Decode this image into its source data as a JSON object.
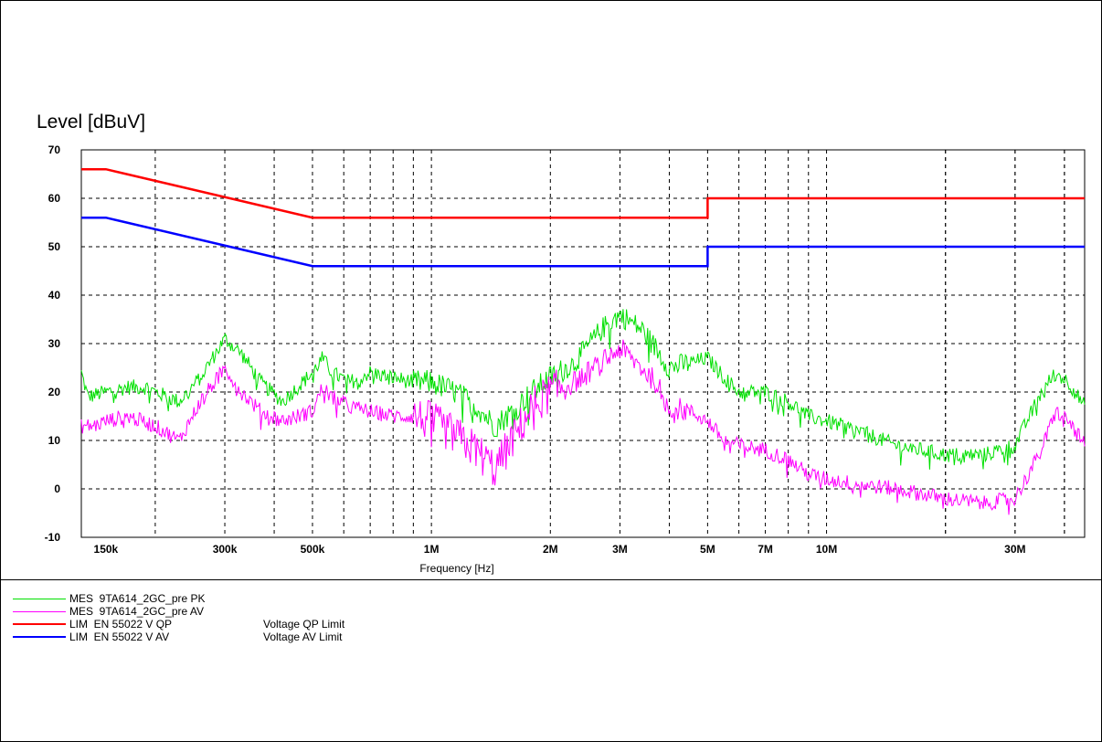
{
  "chart_data": {
    "type": "line",
    "ylabel": "Level [dBuV]",
    "xlabel": "Frequency [Hz]",
    "x_scale": "log",
    "xlim": [
      130000,
      45000000
    ],
    "ylim": [
      -10,
      70
    ],
    "yticks": [
      70,
      60,
      50,
      40,
      30,
      20,
      10,
      0,
      -10
    ],
    "xtick_labels": [
      {
        "value": 150000,
        "label": "150k"
      },
      {
        "value": 300000,
        "label": "300k"
      },
      {
        "value": 500000,
        "label": "500k"
      },
      {
        "value": 1000000,
        "label": "1M"
      },
      {
        "value": 2000000,
        "label": "2M"
      },
      {
        "value": 3000000,
        "label": "3M"
      },
      {
        "value": 5000000,
        "label": "5M"
      },
      {
        "value": 7000000,
        "label": "7M"
      },
      {
        "value": 10000000,
        "label": "10M"
      },
      {
        "value": 30000000,
        "label": "30M"
      }
    ],
    "grid": true,
    "series": [
      {
        "name": "MES  9TA614_2GC_pre PK",
        "color": "#00e000",
        "noisy": true,
        "points": [
          [
            130000,
            24
          ],
          [
            135000,
            19
          ],
          [
            150000,
            20
          ],
          [
            170000,
            21
          ],
          [
            190000,
            21
          ],
          [
            200000,
            20
          ],
          [
            230000,
            18
          ],
          [
            260000,
            23
          ],
          [
            300000,
            31
          ],
          [
            330000,
            28
          ],
          [
            370000,
            22
          ],
          [
            420000,
            18
          ],
          [
            500000,
            24
          ],
          [
            530000,
            27
          ],
          [
            560000,
            24
          ],
          [
            620000,
            22
          ],
          [
            700000,
            24
          ],
          [
            800000,
            23
          ],
          [
            900000,
            22
          ],
          [
            1000000,
            22
          ],
          [
            1150000,
            20
          ],
          [
            1300000,
            17
          ],
          [
            1450000,
            13
          ],
          [
            1600000,
            16
          ],
          [
            1800000,
            20
          ],
          [
            2000000,
            23
          ],
          [
            2300000,
            26
          ],
          [
            2700000,
            33
          ],
          [
            3000000,
            36
          ],
          [
            3400000,
            33
          ],
          [
            3700000,
            29
          ],
          [
            4000000,
            25
          ],
          [
            4500000,
            26
          ],
          [
            5000000,
            27
          ],
          [
            5500000,
            23
          ],
          [
            6000000,
            20
          ],
          [
            7000000,
            20
          ],
          [
            8000000,
            18
          ],
          [
            9000000,
            15
          ],
          [
            10000000,
            14
          ],
          [
            12000000,
            12
          ],
          [
            15000000,
            9
          ],
          [
            20000000,
            7
          ],
          [
            25000000,
            7
          ],
          [
            30000000,
            9
          ],
          [
            35000000,
            20
          ],
          [
            38000000,
            24
          ],
          [
            41000000,
            22
          ],
          [
            45000000,
            17
          ]
        ]
      },
      {
        "name": "MES  9TA614_2GC_pre AV",
        "color": "#ff00ff",
        "noisy": true,
        "points": [
          [
            130000,
            13
          ],
          [
            140000,
            13
          ],
          [
            150000,
            14
          ],
          [
            170000,
            15
          ],
          [
            200000,
            13
          ],
          [
            230000,
            10
          ],
          [
            260000,
            18
          ],
          [
            300000,
            25
          ],
          [
            330000,
            20
          ],
          [
            370000,
            16
          ],
          [
            420000,
            14
          ],
          [
            500000,
            16
          ],
          [
            530000,
            21
          ],
          [
            560000,
            19
          ],
          [
            620000,
            17
          ],
          [
            700000,
            16
          ],
          [
            800000,
            15
          ],
          [
            900000,
            15
          ],
          [
            1000000,
            14
          ],
          [
            1150000,
            11
          ],
          [
            1300000,
            8
          ],
          [
            1450000,
            4
          ],
          [
            1600000,
            10
          ],
          [
            1800000,
            17
          ],
          [
            2000000,
            20
          ],
          [
            2300000,
            22
          ],
          [
            2700000,
            26
          ],
          [
            3000000,
            29
          ],
          [
            3400000,
            25
          ],
          [
            3700000,
            22
          ],
          [
            4000000,
            17
          ],
          [
            4500000,
            16
          ],
          [
            5000000,
            14
          ],
          [
            5500000,
            10
          ],
          [
            6000000,
            9
          ],
          [
            7000000,
            8
          ],
          [
            8000000,
            6
          ],
          [
            9000000,
            3
          ],
          [
            10000000,
            2
          ],
          [
            12000000,
            1
          ],
          [
            15000000,
            0
          ],
          [
            20000000,
            -2
          ],
          [
            25000000,
            -3
          ],
          [
            30000000,
            -2
          ],
          [
            35000000,
            8
          ],
          [
            38000000,
            16
          ],
          [
            41000000,
            14
          ],
          [
            45000000,
            9
          ]
        ]
      },
      {
        "name": "LIM  EN 55022 V QP",
        "desc": "Voltage QP Limit",
        "color": "#ff0000",
        "noisy": false,
        "points": [
          [
            130000,
            66
          ],
          [
            150000,
            66
          ],
          [
            500000,
            56
          ],
          [
            5000000,
            56
          ],
          [
            5000000,
            60
          ],
          [
            45000000,
            60
          ]
        ]
      },
      {
        "name": "LIM  EN 55022 V AV",
        "desc": "Voltage AV Limit",
        "color": "#0000ff",
        "noisy": false,
        "points": [
          [
            130000,
            56
          ],
          [
            150000,
            56
          ],
          [
            500000,
            46
          ],
          [
            5000000,
            46
          ],
          [
            5000000,
            50
          ],
          [
            45000000,
            50
          ]
        ]
      }
    ]
  }
}
